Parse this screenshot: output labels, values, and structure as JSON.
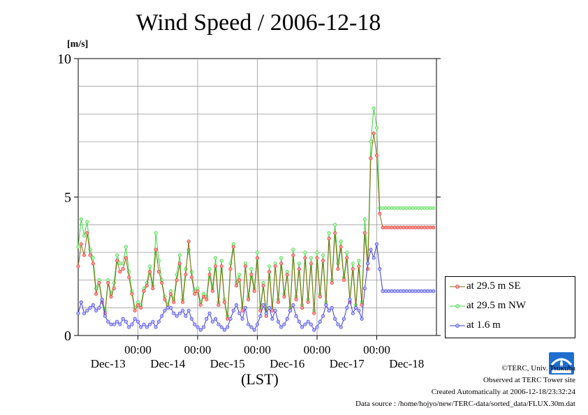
{
  "title": "Wind Speed / 2006-12-18",
  "unit_label": "[m/s]",
  "x_axis_title": "(LST)",
  "credits": {
    "copyright": "©TERC, Univ. Tsukuba",
    "site": "Observed at TERC Tower site",
    "created": "Created Automatically at 2006-12-18/23:32:24",
    "source": "Data source : /home/hojyo/new/TERC-data/sorted_data/FLUX.30m.dat"
  },
  "colors": {
    "se": "#e8322a",
    "nw": "#3cd43c",
    "low": "#3a3ae8",
    "line": "#8a6a18"
  },
  "chart_data": {
    "type": "line",
    "title": "Wind Speed / 2006-12-18",
    "ylabel": "[m/s]",
    "xlabel": "(LST)",
    "ylim": [
      0,
      10
    ],
    "yticks": [
      0,
      5,
      10
    ],
    "grid": true,
    "legend_position": "right-bottom",
    "x_tick_time_labels": [
      "00:00",
      "00:00",
      "00:00",
      "00:00",
      "00:00"
    ],
    "x_tick_date_labels": [
      "Dec-13",
      "Dec-14",
      "Dec-15",
      "Dec-16",
      "Dec-17",
      "Dec-18"
    ],
    "x_range_days": [
      12.0,
      18.0
    ],
    "series": [
      {
        "name": "at 29.5 m SE",
        "color": "#e8322a",
        "t": [
          12.0,
          12.05,
          12.1,
          12.15,
          12.2,
          12.25,
          12.3,
          12.35,
          12.4,
          12.45,
          12.5,
          12.55,
          12.6,
          12.65,
          12.7,
          12.75,
          12.8,
          12.85,
          12.9,
          12.95,
          13.0,
          13.05,
          13.1,
          13.15,
          13.2,
          13.25,
          13.3,
          13.35,
          13.4,
          13.45,
          13.5,
          13.55,
          13.6,
          13.65,
          13.7,
          13.75,
          13.8,
          13.85,
          13.9,
          13.95,
          14.0,
          14.05,
          14.1,
          14.15,
          14.2,
          14.25,
          14.3,
          14.35,
          14.4,
          14.45,
          14.5,
          14.55,
          14.6,
          14.65,
          14.7,
          14.75,
          14.8,
          14.85,
          14.9,
          14.95,
          15.0,
          15.05,
          15.1,
          15.15,
          15.2,
          15.25,
          15.3,
          15.35,
          15.4,
          15.45,
          15.5,
          15.55,
          15.6,
          15.65,
          15.7,
          15.75,
          15.8,
          15.85,
          15.9,
          15.95,
          16.0,
          16.05,
          16.1,
          16.15,
          16.2,
          16.25,
          16.3,
          16.35,
          16.4,
          16.45,
          16.5,
          16.55,
          16.6,
          16.65,
          16.7,
          16.75,
          16.8,
          16.85,
          16.9,
          16.95,
          17.0,
          17.05,
          17.1,
          17.15,
          17.2,
          17.25,
          17.3,
          17.35,
          17.4,
          17.45,
          17.5,
          17.55,
          17.6,
          17.65,
          17.7,
          17.75,
          17.8,
          17.85,
          17.9,
          17.95
        ],
        "values": [
          2.5,
          3.3,
          2.9,
          3.7,
          2.9,
          2.6,
          1.5,
          1.9,
          1.2,
          0.8,
          1.9,
          1.4,
          1.7,
          2.7,
          2.3,
          2.4,
          2.8,
          2.1,
          1.5,
          0.9,
          1.1,
          1.0,
          1.6,
          1.8,
          2.3,
          1.7,
          3.1,
          2.3,
          1.9,
          1.3,
          1.0,
          1.5,
          1.2,
          2.0,
          2.6,
          1.2,
          2.2,
          3.4,
          2.1,
          1.5,
          1.6,
          1.1,
          1.4,
          1.3,
          2.2,
          1.6,
          2.5,
          1.1,
          2.5,
          1.2,
          0.6,
          2.4,
          3.2,
          1.8,
          2.0,
          0.9,
          2.5,
          1.3,
          2.2,
          1.6,
          2.8,
          0.9,
          1.8,
          0.7,
          2.3,
          0.9,
          2.5,
          1.2,
          2.6,
          1.4,
          2.2,
          0.9,
          2.9,
          1.3,
          2.4,
          1.0,
          2.8,
          1.2,
          2.6,
          0.8,
          2.8,
          1.4,
          2.7,
          1.1,
          3.5,
          1.9,
          3.7,
          2.4,
          3.2,
          2.0,
          2.8,
          1.2,
          2.4,
          1.0,
          2.5,
          1.1,
          3.7,
          2.4,
          6.4,
          7.3,
          6.5,
          4.4,
          3.9,
          3.9,
          3.9,
          3.9,
          3.9,
          3.9,
          3.9,
          3.9,
          3.9,
          3.9,
          3.9,
          3.9,
          3.9,
          3.9,
          3.9,
          3.9,
          3.9,
          3.9
        ]
      },
      {
        "name": "at 29.5 m NW",
        "color": "#3cd43c",
        "t": [
          12.0,
          12.05,
          12.1,
          12.15,
          12.2,
          12.25,
          12.3,
          12.35,
          12.4,
          12.45,
          12.5,
          12.55,
          12.6,
          12.65,
          12.7,
          12.75,
          12.8,
          12.85,
          12.9,
          12.95,
          13.0,
          13.05,
          13.1,
          13.15,
          13.2,
          13.25,
          13.3,
          13.35,
          13.4,
          13.45,
          13.5,
          13.55,
          13.6,
          13.65,
          13.7,
          13.75,
          13.8,
          13.85,
          13.9,
          13.95,
          14.0,
          14.05,
          14.1,
          14.15,
          14.2,
          14.25,
          14.3,
          14.35,
          14.4,
          14.45,
          14.5,
          14.55,
          14.6,
          14.65,
          14.7,
          14.75,
          14.8,
          14.85,
          14.9,
          14.95,
          15.0,
          15.05,
          15.1,
          15.15,
          15.2,
          15.25,
          15.3,
          15.35,
          15.4,
          15.45,
          15.5,
          15.55,
          15.6,
          15.65,
          15.7,
          15.75,
          15.8,
          15.85,
          15.9,
          15.95,
          16.0,
          16.05,
          16.1,
          16.15,
          16.2,
          16.25,
          16.3,
          16.35,
          16.4,
          16.45,
          16.5,
          16.55,
          16.6,
          16.65,
          16.7,
          16.75,
          16.8,
          16.85,
          16.9,
          16.95,
          17.0,
          17.05,
          17.1,
          17.15,
          17.2,
          17.25,
          17.3,
          17.35,
          17.4,
          17.45,
          17.5,
          17.55,
          17.6,
          17.65,
          17.7,
          17.75,
          17.8,
          17.85,
          17.9,
          17.95
        ],
        "values": [
          3.2,
          4.2,
          3.6,
          4.1,
          3.1,
          2.8,
          1.7,
          2.0,
          1.3,
          0.9,
          2.0,
          1.5,
          1.9,
          2.9,
          2.6,
          2.6,
          3.2,
          2.3,
          1.6,
          1.0,
          1.2,
          1.1,
          1.7,
          1.9,
          2.5,
          1.8,
          3.7,
          2.7,
          2.0,
          1.4,
          1.1,
          1.6,
          1.3,
          2.2,
          2.9,
          1.3,
          2.4,
          3.1,
          2.3,
          1.6,
          1.7,
          1.2,
          1.5,
          1.4,
          2.4,
          1.7,
          2.8,
          1.2,
          2.7,
          1.3,
          0.7,
          2.6,
          3.3,
          1.9,
          2.2,
          1.0,
          2.6,
          1.4,
          2.4,
          1.7,
          3.0,
          1.0,
          1.9,
          0.8,
          2.5,
          1.0,
          2.6,
          1.3,
          2.8,
          1.5,
          2.3,
          1.0,
          3.1,
          1.4,
          2.6,
          1.1,
          3.0,
          1.3,
          2.8,
          0.9,
          3.0,
          1.5,
          2.9,
          1.2,
          3.7,
          2.0,
          4.0,
          2.6,
          3.4,
          2.1,
          3.0,
          1.3,
          2.6,
          1.1,
          2.7,
          1.2,
          4.2,
          2.6,
          7.0,
          8.2,
          7.5,
          4.6,
          4.6,
          4.6,
          4.6,
          4.6,
          4.6,
          4.6,
          4.6,
          4.6,
          4.6,
          4.6,
          4.6,
          4.6,
          4.6,
          4.6,
          4.6,
          4.6,
          4.6,
          4.6
        ]
      },
      {
        "name": "at 1.6 m",
        "color": "#3a3ae8",
        "t": [
          12.0,
          12.05,
          12.1,
          12.15,
          12.2,
          12.25,
          12.3,
          12.35,
          12.4,
          12.45,
          12.5,
          12.55,
          12.6,
          12.65,
          12.7,
          12.75,
          12.8,
          12.85,
          12.9,
          12.95,
          13.0,
          13.05,
          13.1,
          13.15,
          13.2,
          13.25,
          13.3,
          13.35,
          13.4,
          13.45,
          13.5,
          13.55,
          13.6,
          13.65,
          13.7,
          13.75,
          13.8,
          13.85,
          13.9,
          13.95,
          14.0,
          14.05,
          14.1,
          14.15,
          14.2,
          14.25,
          14.3,
          14.35,
          14.4,
          14.45,
          14.5,
          14.55,
          14.6,
          14.65,
          14.7,
          14.75,
          14.8,
          14.85,
          14.9,
          14.95,
          15.0,
          15.05,
          15.1,
          15.15,
          15.2,
          15.25,
          15.3,
          15.35,
          15.4,
          15.45,
          15.5,
          15.55,
          15.6,
          15.65,
          15.7,
          15.75,
          15.8,
          15.85,
          15.9,
          15.95,
          16.0,
          16.05,
          16.1,
          16.15,
          16.2,
          16.25,
          16.3,
          16.35,
          16.4,
          16.45,
          16.5,
          16.55,
          16.6,
          16.65,
          16.7,
          16.75,
          16.8,
          16.85,
          16.9,
          16.95,
          17.0,
          17.05,
          17.1,
          17.15,
          17.2,
          17.25,
          17.3,
          17.35,
          17.4,
          17.45,
          17.5,
          17.55,
          17.6,
          17.65,
          17.7,
          17.75,
          17.8,
          17.85,
          17.9,
          17.95
        ],
        "values": [
          0.8,
          1.2,
          0.8,
          0.9,
          1.0,
          1.1,
          0.9,
          1.0,
          1.3,
          0.7,
          0.5,
          0.4,
          0.4,
          0.5,
          0.4,
          0.6,
          0.5,
          0.3,
          0.4,
          0.6,
          0.5,
          0.3,
          0.4,
          0.3,
          0.4,
          0.5,
          0.3,
          0.5,
          0.7,
          0.9,
          1.0,
          1.0,
          0.8,
          0.7,
          0.8,
          0.9,
          0.7,
          0.9,
          0.6,
          0.4,
          0.3,
          0.2,
          0.3,
          0.6,
          0.8,
          0.5,
          0.6,
          0.4,
          0.3,
          0.2,
          0.3,
          0.6,
          0.9,
          1.1,
          0.8,
          0.6,
          1.0,
          0.4,
          0.3,
          0.2,
          0.4,
          0.7,
          1.1,
          0.8,
          1.0,
          0.6,
          0.9,
          0.5,
          0.3,
          0.4,
          0.6,
          0.9,
          1.1,
          0.7,
          0.5,
          0.3,
          0.4,
          0.5,
          0.4,
          0.2,
          0.3,
          0.5,
          0.7,
          1.1,
          0.9,
          1.0,
          0.6,
          0.4,
          0.3,
          0.6,
          1.0,
          1.3,
          0.8,
          1.0,
          0.9,
          0.6,
          1.7,
          2.6,
          3.1,
          2.8,
          3.3,
          2.4,
          1.6,
          1.6,
          1.6,
          1.6,
          1.6,
          1.6,
          1.6,
          1.6,
          1.6,
          1.6,
          1.6,
          1.6,
          1.6,
          1.6,
          1.6,
          1.6,
          1.6,
          1.6
        ]
      }
    ]
  },
  "legend": [
    {
      "label": "at 29.5 m SE",
      "icon": "red-dot-line"
    },
    {
      "label": "at 29.5 m NW",
      "icon": "green-dot-line"
    },
    {
      "label": "at 1.6 m",
      "icon": "blue-dot-line"
    }
  ]
}
